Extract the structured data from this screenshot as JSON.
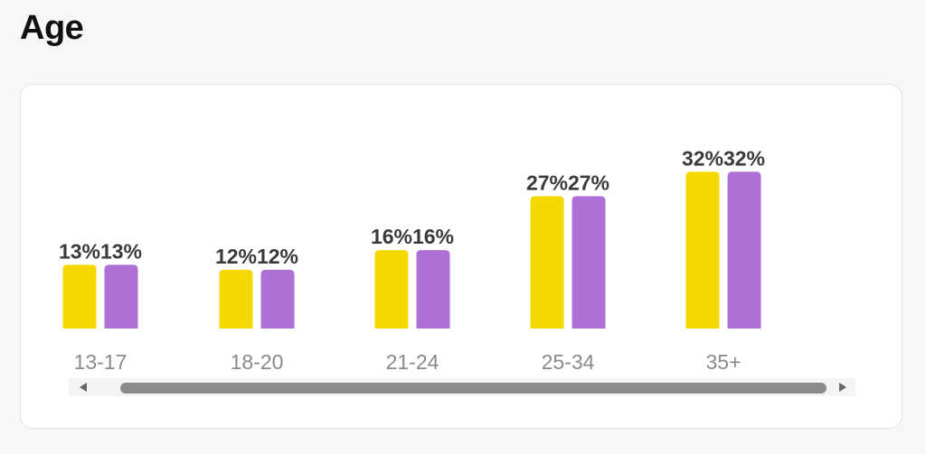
{
  "page": {
    "title": "Age"
  },
  "colors": {
    "series_a": "#f5d800",
    "series_b": "#ae6fd6",
    "value_label": "#3a3a3a",
    "tick_label": "#8a8a8a"
  },
  "chart_data": {
    "type": "bar",
    "title": "",
    "xlabel": "",
    "ylabel": "",
    "categories": [
      "13-17",
      "18-20",
      "21-24",
      "25-34",
      "35+"
    ],
    "series": [
      {
        "values": [
          13,
          12,
          16,
          27,
          32
        ],
        "labels": [
          "13%",
          "12%",
          "16%",
          "27%",
          "32%"
        ]
      },
      {
        "values": [
          13,
          12,
          16,
          27,
          32
        ],
        "labels": [
          "13%",
          "12%",
          "16%",
          "27%",
          "32%"
        ]
      }
    ],
    "ylim": [
      0,
      35
    ],
    "grid": false
  },
  "scrollbar": {
    "left_icon": "chevron-left-icon",
    "right_icon": "chevron-right-icon"
  }
}
